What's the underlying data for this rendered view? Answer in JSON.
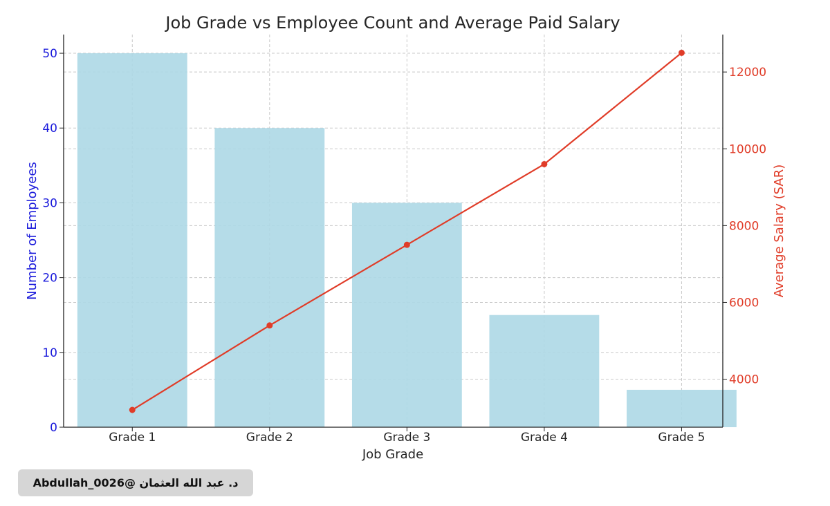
{
  "chart_data": {
    "type": "bar+line",
    "title": "Job Grade vs Employee Count and Average Paid Salary",
    "xlabel": "Job Grade",
    "ylabel_left": "Number of Employees",
    "ylabel_right": "Average Salary (SAR)",
    "categories": [
      "Grade 1",
      "Grade 2",
      "Grade 3",
      "Grade 4",
      "Grade 5"
    ],
    "series": [
      {
        "kind": "bar",
        "axis": "left",
        "values": [
          50,
          40,
          30,
          15,
          5
        ]
      },
      {
        "kind": "line",
        "axis": "right",
        "values": [
          3200,
          5400,
          7500,
          9600,
          12500
        ]
      }
    ],
    "ylim_left": [
      0,
      52.5
    ],
    "ylim_right": [
      2750,
      12975
    ],
    "yticks_left": [
      0,
      10,
      20,
      30,
      40,
      50
    ],
    "yticks_right": [
      4000,
      6000,
      8000,
      10000,
      12000
    ],
    "grid": true,
    "colors": {
      "bar": "#add8e6",
      "line": "#e03c28",
      "left_axis": "#1a1adb",
      "right_axis": "#e03c28",
      "grid": "#c8c8c8"
    }
  },
  "credit": "د. عبد الله العثمان @Abdullah_0026"
}
